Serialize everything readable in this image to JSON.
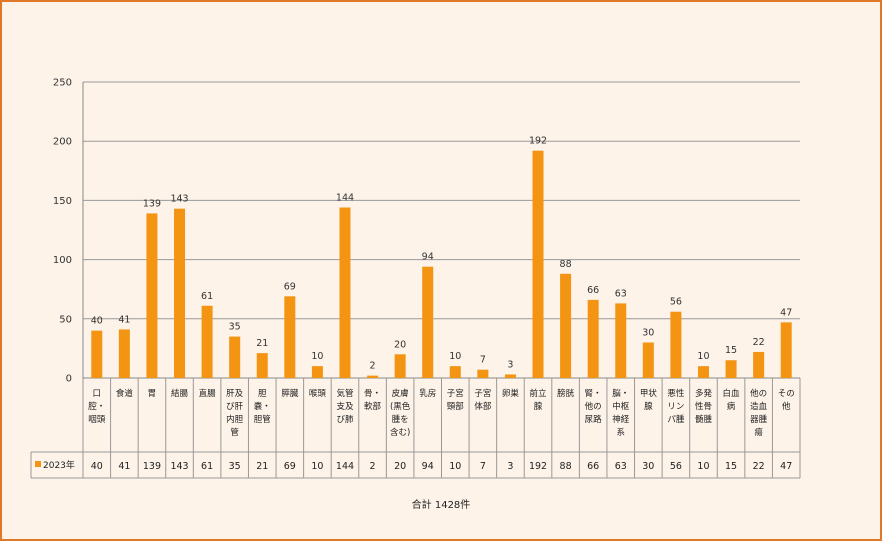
{
  "chart_data": {
    "type": "bar",
    "categories": [
      "口腔・咽頭",
      "食道",
      "胃",
      "結腸",
      "直腸",
      "肝及び肝内胆管",
      "胆嚢・胆管",
      "膵臓",
      "喉頭",
      "気管支及び肺",
      "骨・軟部",
      "皮膚(黒色腫を含む)",
      "乳房",
      "子宮頸部",
      "子宮体部",
      "卵巣",
      "前立腺",
      "膀胱",
      "腎・他の尿路",
      "脳・中枢神経系",
      "甲状腺",
      "悪性リンパ腫",
      "多発性骨髄腫",
      "白血病",
      "他の造血器腫瘍",
      "その他"
    ],
    "category_lines": [
      [
        "口",
        "腔・",
        "咽頭"
      ],
      [
        "食道"
      ],
      [
        "胃"
      ],
      [
        "結腸"
      ],
      [
        "直腸"
      ],
      [
        "肝及",
        "び肝",
        "内胆",
        "管"
      ],
      [
        "胆",
        "嚢・",
        "胆管"
      ],
      [
        "膵臓"
      ],
      [
        "喉頭"
      ],
      [
        "気管",
        "支及",
        "び肺"
      ],
      [
        "骨・",
        "軟部"
      ],
      [
        "皮膚",
        "(黒色",
        "腫を",
        "含む)"
      ],
      [
        "乳房"
      ],
      [
        "子宮",
        "頸部"
      ],
      [
        "子宮",
        "体部"
      ],
      [
        "卵巣"
      ],
      [
        "前立",
        "腺"
      ],
      [
        "膀胱"
      ],
      [
        "腎・",
        "他の",
        "尿路"
      ],
      [
        "脳・",
        "中枢",
        "神経",
        "系"
      ],
      [
        "甲状",
        "腺"
      ],
      [
        "悪性",
        "リン",
        "パ腫"
      ],
      [
        "多発",
        "性骨",
        "髄腫"
      ],
      [
        "白血",
        "病"
      ],
      [
        "他の",
        "造血",
        "器腫",
        "瘍"
      ],
      [
        "その",
        "他"
      ]
    ],
    "series": [
      {
        "name": "2023年",
        "values": [
          40,
          41,
          139,
          143,
          61,
          35,
          21,
          69,
          10,
          144,
          2,
          20,
          94,
          10,
          7,
          3,
          192,
          88,
          66,
          63,
          30,
          56,
          10,
          15,
          22,
          47
        ]
      }
    ],
    "ylim": [
      0,
      250
    ],
    "yticks": [
      0,
      50,
      100,
      150,
      200,
      250
    ],
    "grid": true,
    "legend": "data-table",
    "bar_color": "#f39412",
    "total_label": "合計 1428件"
  }
}
